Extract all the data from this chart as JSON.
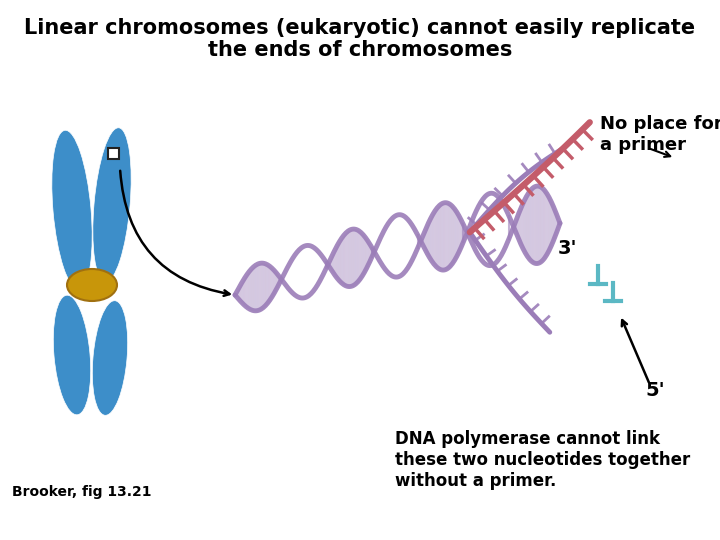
{
  "title_line1": "Linear chromosomes (eukaryotic) cannot easily replicate",
  "title_line2": "the ends of chromosomes",
  "title_fontsize": 15,
  "label_no_place": "No place for\na primer",
  "label_3prime": "3'",
  "label_5prime": "5'",
  "label_dna_poly": "DNA polymerase cannot link\nthese two nucleotides together\nwithout a primer.",
  "label_brooker": "Brooker, fig 13.21",
  "bg_color": "#ffffff",
  "text_color": "#000000",
  "chromosome_color": "#3d8ec9",
  "centromere_color": "#c8960a",
  "dna_helix_color": "#9b7db8",
  "template_strand_color": "#c45c6a",
  "primer_stub_color": "#5bb8c4",
  "label_fontsize": 12,
  "brooker_fontsize": 10
}
